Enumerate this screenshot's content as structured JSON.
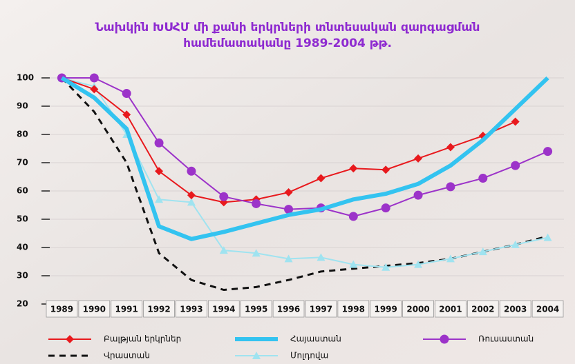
{
  "chart_data": {
    "type": "line",
    "title": "Նախկին ԽՍՀՄ մի քանի երկրների տնտեսական զարգացման",
    "subtitle": "համեմատականը 1989-2004 թթ.",
    "categories": [
      "1989",
      "1990",
      "1991",
      "1992",
      "1993",
      "1994",
      "1995",
      "1996",
      "1997",
      "1998",
      "1999",
      "2000",
      "2001",
      "2002",
      "2003",
      "2004"
    ],
    "series": [
      {
        "name": "Բալթյան երկրներ",
        "color": "#e8191d",
        "marker": "diamond",
        "values": [
          100,
          96,
          87,
          67,
          58.5,
          56,
          57,
          59.5,
          64.5,
          68,
          67.5,
          71.5,
          75.5,
          79.5,
          84.5,
          null
        ]
      },
      {
        "name": "Հայաստան",
        "color": "#33c3f0",
        "marker": "none",
        "values": [
          100,
          93,
          82,
          47.5,
          43,
          45.5,
          48.5,
          51.5,
          53.5,
          57,
          59,
          62.5,
          69,
          78,
          89,
          100
        ]
      },
      {
        "name": "Ռուսաստան",
        "color": "#9c33c9",
        "marker": "circle",
        "values": [
          100,
          100,
          94.5,
          77,
          67,
          58,
          55.5,
          53.5,
          54,
          51,
          54,
          58.5,
          61.5,
          64.5,
          69,
          74
        ]
      },
      {
        "name": "Վրաստան",
        "color": "#111111",
        "marker": "dashed",
        "values": [
          100,
          88,
          70,
          38,
          28.5,
          25,
          26,
          28.5,
          31.5,
          32.5,
          33.5,
          34.5,
          36,
          38.5,
          41,
          44
        ]
      },
      {
        "name": "Մոլդովա",
        "color": "#9fe3f0",
        "marker": "triangle",
        "values": [
          100,
          97,
          80,
          57,
          56,
          39,
          38,
          36,
          36.5,
          34,
          33,
          34,
          36,
          38.5,
          41,
          43.5
        ]
      }
    ],
    "ylim": [
      20,
      100
    ],
    "yticks": [
      20,
      30,
      40,
      50,
      60,
      70,
      80,
      90,
      100
    ],
    "grid": true
  }
}
